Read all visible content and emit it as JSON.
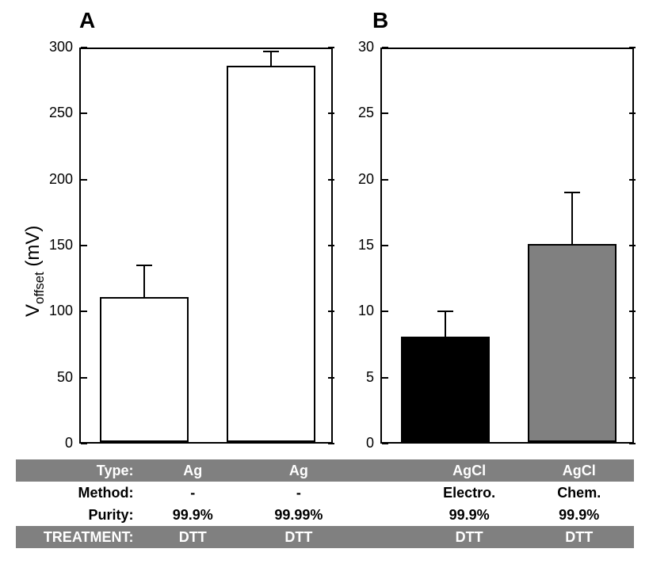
{
  "panelA": {
    "label": "A",
    "type": "bar",
    "ylabel_prefix": "V",
    "ylabel_sub": "offset",
    "ylabel_suffix": " (mV)",
    "ylim": [
      0,
      300
    ],
    "ytick_step": 50,
    "yticks": [
      0,
      50,
      100,
      150,
      200,
      250,
      300
    ],
    "bars": [
      {
        "x": 0,
        "value": 110,
        "err": 25,
        "fill": "#ffffff"
      },
      {
        "x": 1,
        "value": 285,
        "err": 12,
        "fill": "#ffffff"
      }
    ],
    "bar_border": "#000000",
    "axis_color": "#000000",
    "background_color": "#ffffff",
    "tick_fontsize": 18,
    "label_fontsize": 24,
    "panel_label_fontsize": 28
  },
  "panelB": {
    "label": "B",
    "type": "bar",
    "ylim": [
      0,
      30
    ],
    "ytick_step": 5,
    "yticks": [
      0,
      5,
      10,
      15,
      20,
      25,
      30
    ],
    "bars": [
      {
        "x": 0,
        "value": 8,
        "err": 2,
        "fill": "#000000"
      },
      {
        "x": 1,
        "value": 15,
        "err": 4,
        "fill": "#808080"
      }
    ],
    "bar_border": "#000000",
    "axis_color": "#000000",
    "background_color": "#ffffff",
    "tick_fontsize": 18,
    "panel_label_fontsize": 28
  },
  "table": {
    "row_shaded_bg": "#808080",
    "row_shaded_fg": "#ffffff",
    "row_plain_bg": "#ffffff",
    "row_plain_fg": "#000000",
    "fontsize": 18,
    "headers": [
      "Type:",
      "Method:",
      "Purity:",
      "TREATMENT:"
    ],
    "shaded": [
      true,
      false,
      false,
      true
    ],
    "colA": [
      [
        "Ag",
        "Ag"
      ],
      [
        "-",
        "-"
      ],
      [
        "99.9%",
        "99.99%"
      ],
      [
        "DTT",
        "DTT"
      ]
    ],
    "colB": [
      [
        "AgCl",
        "AgCl"
      ],
      [
        "Electro.",
        "Chem."
      ],
      [
        "99.9%",
        "99.9%"
      ],
      [
        "DTT",
        "DTT"
      ]
    ],
    "col_widths": {
      "hdr": 150,
      "a1": 135,
      "a2": 135,
      "gap": 80,
      "b1": 140,
      "b2": 140
    }
  }
}
